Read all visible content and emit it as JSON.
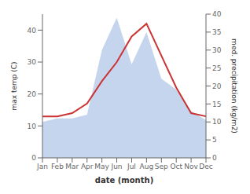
{
  "chart_data": {
    "type": "line",
    "categories": [
      "Jan",
      "Feb",
      "Mar",
      "Apr",
      "May",
      "Jun",
      "Jul",
      "Aug",
      "Sep",
      "Oct",
      "Nov",
      "Dec"
    ],
    "xlabel": "date (month)",
    "ylabel": "max temp (C)",
    "y2label": "med. precipitation (kg/m2)",
    "ylim": [
      0,
      45
    ],
    "yticks": [
      0,
      10,
      20,
      30,
      40
    ],
    "y2lim": [
      0,
      40
    ],
    "y2ticks": [
      0,
      5,
      10,
      15,
      20,
      25,
      30,
      35,
      40
    ],
    "grid": false,
    "series": [
      {
        "type": "area",
        "axis": "y2",
        "color": "#c5d5ee",
        "values": [
          10.0,
          11.0,
          11.0,
          12.0,
          30.0,
          39.0,
          26.0,
          35.0,
          22.0,
          19.0,
          13.0,
          10.5
        ]
      },
      {
        "type": "line",
        "color": "#cc3333",
        "values": [
          13.0,
          13.0,
          14.0,
          17.0,
          24.0,
          30.0,
          38.0,
          42.0,
          32.0,
          22.0,
          14.0,
          13.0
        ]
      }
    ]
  }
}
